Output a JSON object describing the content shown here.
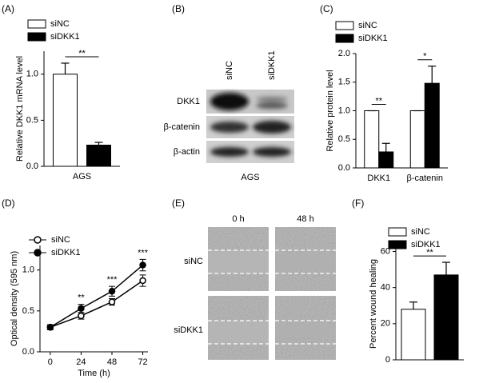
{
  "chart_data": [
    {
      "type": "bar",
      "panel": "(A)",
      "ylabel": "Relative DKK1 mRNA level",
      "categories": [
        "AGS"
      ],
      "series": [
        {
          "name": "siNC",
          "color": "#ffffff",
          "values": [
            1.0
          ],
          "errors": [
            0.12
          ]
        },
        {
          "name": "siDKK1",
          "color": "#000000",
          "values": [
            0.23
          ],
          "errors": [
            0.03
          ]
        }
      ],
      "annotations": [
        "**"
      ],
      "ylim": [
        0,
        1.25
      ],
      "yticks": [
        {
          "value": 0,
          "label": "0.0"
        },
        {
          "value": 0.5,
          "label": "0.5"
        },
        {
          "value": 1,
          "label": "1.0"
        }
      ]
    },
    {
      "type": "bar",
      "panel": "(C)",
      "ylabel": "Relative protein level",
      "categories": [
        "DKK1",
        "β-catenin"
      ],
      "series": [
        {
          "name": "siNC",
          "color": "#ffffff",
          "values": [
            1.0,
            1.0
          ],
          "errors": [
            0,
            0
          ]
        },
        {
          "name": "siDKK1",
          "color": "#000000",
          "values": [
            0.28,
            1.48
          ],
          "errors": [
            0.15,
            0.3
          ]
        }
      ],
      "annotations": [
        "**",
        "*"
      ],
      "ylim": [
        0,
        2
      ],
      "yticks": [
        {
          "value": 0,
          "label": "0.0"
        },
        {
          "value": 0.5,
          "label": "0.5"
        },
        {
          "value": 1,
          "label": "1.0"
        },
        {
          "value": 1.5,
          "label": "1.5"
        },
        {
          "value": 2,
          "label": "2.0"
        }
      ]
    },
    {
      "type": "line",
      "panel": "(D)",
      "xlabel": "Time (h)",
      "ylabel": "Optical density (595 nm)",
      "x": [
        0,
        24,
        48,
        72
      ],
      "series": [
        {
          "name": "siNC",
          "color": "#000000",
          "fill": "#ffffff",
          "values": [
            0.3,
            0.44,
            0.61,
            0.87
          ],
          "errors": [
            0.03,
            0.04,
            0.04,
            0.07
          ]
        },
        {
          "name": "siDKK1",
          "color": "#000000",
          "fill": "#000000",
          "values": [
            0.3,
            0.53,
            0.74,
            1.06
          ],
          "errors": [
            0.03,
            0.05,
            0.06,
            0.07
          ]
        }
      ],
      "annotations": [
        null,
        "**",
        "***",
        "***"
      ],
      "xlim": [
        -8,
        76
      ],
      "xticks": [
        0,
        24,
        48,
        72
      ],
      "ylim": [
        0,
        1.3
      ],
      "yticks": [
        {
          "value": 0,
          "label": "0.0"
        },
        {
          "value": 0.5,
          "label": "0.5"
        },
        {
          "value": 1,
          "label": "1.0"
        }
      ]
    },
    {
      "type": "bar",
      "panel": "(F)",
      "ylabel": "Percent wound healing",
      "categories": [
        null
      ],
      "series": [
        {
          "name": "siNC",
          "color": "#ffffff",
          "values": [
            28
          ],
          "errors": [
            4
          ]
        },
        {
          "name": "siDKK1",
          "color": "#000000",
          "values": [
            47
          ],
          "errors": [
            7
          ]
        }
      ],
      "annotations": [
        "**"
      ],
      "ylim": [
        0,
        62
      ],
      "yticks": [
        0,
        20,
        40,
        60
      ]
    }
  ],
  "blot": {
    "panel": "(B)",
    "lanes": [
      "siNC",
      "siDKK1"
    ],
    "rows": [
      "DKK1",
      "β-catenin",
      "β-actin"
    ],
    "caption": "AGS"
  },
  "wound": {
    "panel": "(E)",
    "columns": [
      "0 h",
      "48 h"
    ],
    "rows": [
      "siNC",
      "siDKK1"
    ]
  }
}
